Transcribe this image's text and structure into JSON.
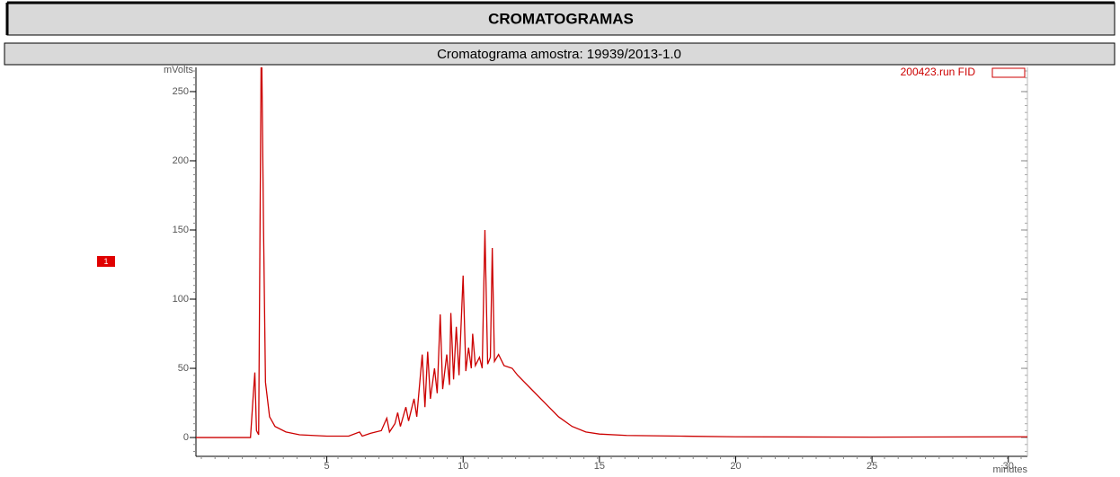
{
  "header": {
    "title": "CROMATOGRAMAS"
  },
  "chart_data": {
    "type": "line",
    "title": "Cromatograma amostra: 19939/2013-1.0",
    "y_label": "mVolts",
    "x_label": "minutes",
    "annotation": "200423.run FID",
    "marker_label": "1",
    "color": "#cc0000",
    "grid": false,
    "xlim": [
      0.2,
      30.7
    ],
    "ylim": [
      -13.6,
      267.5
    ],
    "xticks": [
      5,
      10,
      15,
      20,
      25,
      30
    ],
    "yticks": [
      0,
      50,
      100,
      150,
      200,
      250
    ],
    "x": [
      0.2,
      2.2,
      2.3,
      2.36,
      2.42,
      2.5,
      2.6,
      2.68,
      2.75,
      2.9,
      3.1,
      3.5,
      4,
      5,
      5.8,
      6.2,
      6.3,
      6.6,
      7.0,
      7.2,
      7.3,
      7.5,
      7.6,
      7.7,
      7.9,
      8.0,
      8.2,
      8.3,
      8.5,
      8.6,
      8.7,
      8.8,
      8.95,
      9.05,
      9.16,
      9.25,
      9.4,
      9.5,
      9.55,
      9.65,
      9.75,
      9.85,
      10.0,
      10.1,
      10.2,
      10.3,
      10.35,
      10.45,
      10.6,
      10.7,
      10.8,
      10.9,
      11.0,
      11.07,
      11.15,
      11.3,
      11.5,
      11.8,
      12.0,
      12.5,
      13.0,
      13.5,
      14.0,
      14.5,
      15,
      16,
      18,
      20,
      25,
      30.7
    ],
    "values": [
      0,
      0,
      30,
      47,
      5,
      2,
      300,
      150,
      40,
      15,
      8,
      4,
      2,
      1,
      1,
      4,
      1,
      3,
      5,
      14,
      4,
      10,
      18,
      8,
      22,
      12,
      28,
      15,
      60,
      22,
      62,
      28,
      50,
      32,
      89,
      35,
      60,
      38,
      90,
      42,
      80,
      45,
      117,
      48,
      65,
      50,
      75,
      52,
      58,
      50,
      150,
      53,
      58,
      137,
      55,
      60,
      52,
      50,
      45,
      35,
      25,
      15,
      8,
      4,
      2.5,
      1.5,
      1,
      0.5,
      0.3,
      0.5
    ]
  }
}
